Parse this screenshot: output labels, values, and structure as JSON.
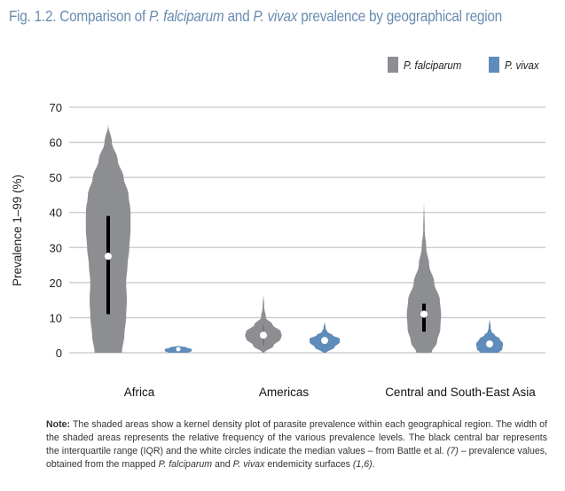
{
  "title": {
    "prefix": "Fig. 1.2. Comparison of ",
    "species1": "P. falciparum",
    "middle": " and ",
    "species2": "P. vivax",
    "suffix": " prevalence by geographical region"
  },
  "colors": {
    "title": "#6a8bb0",
    "falciparum": "#8d8e92",
    "vivax": "#5f8cba",
    "gridline": "#c8c8c8",
    "iqr_bar": "#000000",
    "median_dot": "#ffffff"
  },
  "note": {
    "label": "Note:",
    "part1": " The shaded areas show a kernel density plot of parasite prevalence within each geographical region. The width of the shaded areas represents the relative frequency of the various prevalence levels. The black central bar represents the interquartile range (IQR) and the white circles indicate the median values – from Battle et al. ",
    "ref1": "(7)",
    "part2": " – prevalence values, obtained from the mapped ",
    "species1": "P. falciparum",
    "part3": " and ",
    "species2": "P. vivax",
    "part4": " endemicity surfaces ",
    "ref2": "(1,6)",
    "part5": "."
  },
  "chart_data": {
    "type": "violin",
    "title": "Fig. 1.2. Comparison of P. falciparum and P. vivax prevalence by geographical region",
    "xlabel": "",
    "ylabel": "Prevalence 1–99 (%)",
    "ylim": [
      0,
      70
    ],
    "yticks": [
      0,
      10,
      20,
      30,
      40,
      50,
      60,
      70
    ],
    "grid": true,
    "legend_position": "top-right",
    "categories": [
      "Africa",
      "Americas",
      "Central and South-East Asia"
    ],
    "series": [
      {
        "name": "P. falciparum",
        "color": "#8d8e92",
        "values": [
          {
            "category": "Africa",
            "min": 0,
            "max": 65,
            "q1": 11,
            "median": 27.5,
            "q3": 39,
            "density": [
              [
                0,
                0.55
              ],
              [
                5,
                0.65
              ],
              [
                10,
                0.72
              ],
              [
                15,
                0.75
              ],
              [
                20,
                0.72
              ],
              [
                25,
                0.78
              ],
              [
                30,
                0.85
              ],
              [
                35,
                0.9
              ],
              [
                40,
                0.9
              ],
              [
                45,
                0.82
              ],
              [
                50,
                0.62
              ],
              [
                55,
                0.38
              ],
              [
                60,
                0.15
              ],
              [
                65,
                0
              ]
            ]
          },
          {
            "category": "Americas",
            "min": 0,
            "max": 17,
            "q1": 2,
            "median": 5,
            "q3": 8,
            "density": [
              [
                0,
                0.05
              ],
              [
                2,
                0.5
              ],
              [
                4,
                0.85
              ],
              [
                5,
                0.9
              ],
              [
                6,
                0.85
              ],
              [
                8,
                0.45
              ],
              [
                10,
                0.12
              ],
              [
                13,
                0.04
              ],
              [
                17,
                0
              ]
            ]
          },
          {
            "category": "Central and South-East Asia",
            "min": 0,
            "max": 44,
            "q1": 6,
            "median": 11,
            "q3": 14,
            "density": [
              [
                0,
                0.4
              ],
              [
                3,
                0.7
              ],
              [
                7,
                0.88
              ],
              [
                11,
                0.92
              ],
              [
                15,
                0.85
              ],
              [
                20,
                0.55
              ],
              [
                25,
                0.28
              ],
              [
                30,
                0.12
              ],
              [
                35,
                0.04
              ],
              [
                44,
                0
              ]
            ]
          }
        ]
      },
      {
        "name": "P. vivax",
        "color": "#5f8cba",
        "values": [
          {
            "category": "Africa",
            "min": 0,
            "max": 2,
            "q1": 0.5,
            "median": 1,
            "q3": 1.5,
            "density": [
              [
                0,
                0.6
              ],
              [
                0.5,
                0.8
              ],
              [
                1,
                0.8
              ],
              [
                1.5,
                0.5
              ],
              [
                2,
                0
              ]
            ]
          },
          {
            "category": "Americas",
            "min": 0,
            "max": 9,
            "q1": 2.5,
            "median": 3.5,
            "q3": 4.5,
            "density": [
              [
                0,
                0.1
              ],
              [
                1.5,
                0.55
              ],
              [
                3,
                0.85
              ],
              [
                4,
                0.85
              ],
              [
                5,
                0.45
              ],
              [
                6,
                0.15
              ],
              [
                7,
                0.06
              ],
              [
                9,
                0
              ]
            ]
          },
          {
            "category": "Central and South-East Asia",
            "min": 0,
            "max": 10,
            "q1": 1.5,
            "median": 2.5,
            "q3": 3.5,
            "density": [
              [
                0,
                0.55
              ],
              [
                1,
                0.75
              ],
              [
                2.5,
                0.8
              ],
              [
                4,
                0.6
              ],
              [
                5,
                0.32
              ],
              [
                6,
                0.12
              ],
              [
                7,
                0.06
              ],
              [
                10,
                0
              ]
            ]
          }
        ]
      }
    ]
  }
}
